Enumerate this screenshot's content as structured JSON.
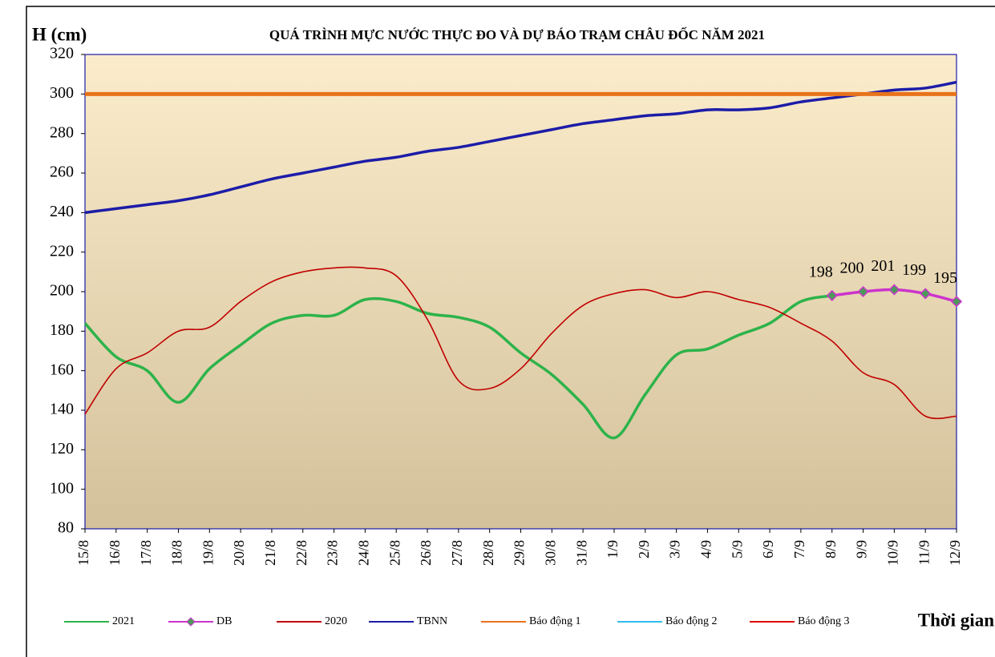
{
  "chart_data": {
    "type": "line",
    "title": "QUÁ TRÌNH MỰC NƯỚC THỰC ĐO VÀ DỰ BÁO TRẠM CHÂU ĐỐC NĂM 2021",
    "y_label": "H (cm)",
    "x_label": "Thời gian",
    "categories": [
      "15/8",
      "16/8",
      "17/8",
      "18/8",
      "19/8",
      "20/8",
      "21/8",
      "22/8",
      "23/8",
      "24/8",
      "25/8",
      "26/8",
      "27/8",
      "28/8",
      "29/8",
      "30/8",
      "31/8",
      "1/9",
      "2/9",
      "3/9",
      "4/9",
      "5/9",
      "6/9",
      "7/9",
      "8/9",
      "9/9",
      "10/9",
      "11/9",
      "12/9"
    ],
    "ylim": [
      80,
      320
    ],
    "yticks": [
      80,
      100,
      120,
      140,
      160,
      180,
      200,
      220,
      240,
      260,
      280,
      300,
      320
    ],
    "series": [
      {
        "name": "2021",
        "color": "#2db34a",
        "values": [
          184,
          167,
          160,
          144,
          161,
          173,
          184,
          188,
          188,
          196,
          195,
          189,
          187,
          182,
          169,
          158,
          143,
          126,
          148,
          168,
          171,
          178,
          184,
          195,
          198,
          null,
          null,
          null,
          null
        ]
      },
      {
        "name": "DB",
        "color": "#cc33cc",
        "marker_color": "#4c9a5a",
        "data_labels": true,
        "values": [
          null,
          null,
          null,
          null,
          null,
          null,
          null,
          null,
          null,
          null,
          null,
          null,
          null,
          null,
          null,
          null,
          null,
          null,
          null,
          null,
          null,
          null,
          null,
          null,
          198,
          200,
          201,
          199,
          195
        ]
      },
      {
        "name": "2020",
        "color": "#c00000",
        "values": [
          138,
          161,
          169,
          180,
          182,
          195,
          205,
          210,
          212,
          212,
          208,
          186,
          155,
          151,
          161,
          179,
          193,
          199,
          201,
          197,
          200,
          196,
          192,
          184,
          175,
          159,
          153,
          137,
          137
        ]
      },
      {
        "name": "TBNN",
        "color": "#1c1ca8",
        "values": [
          240,
          242,
          244,
          246,
          249,
          253,
          257,
          260,
          263,
          266,
          268,
          271,
          273,
          276,
          279,
          282,
          285,
          287,
          289,
          290,
          292,
          292,
          293,
          296,
          298,
          300,
          302,
          303,
          306
        ]
      },
      {
        "name": "Báo động 1",
        "color": "#e8731a",
        "values": [
          300,
          300,
          300,
          300,
          300,
          300,
          300,
          300,
          300,
          300,
          300,
          300,
          300,
          300,
          300,
          300,
          300,
          300,
          300,
          300,
          300,
          300,
          300,
          300,
          300,
          300,
          300,
          300,
          300
        ]
      },
      {
        "name": "Báo động 2",
        "color": "#33bbee",
        "values": [
          null,
          null,
          null,
          null,
          null,
          null,
          null,
          null,
          null,
          null,
          null,
          null,
          null,
          null,
          null,
          null,
          null,
          null,
          null,
          null,
          null,
          null,
          null,
          null,
          null,
          null,
          null,
          null,
          null
        ]
      },
      {
        "name": "Báo động 3",
        "color": "#e00000",
        "values": [
          null,
          null,
          null,
          null,
          null,
          null,
          null,
          null,
          null,
          null,
          null,
          null,
          null,
          null,
          null,
          null,
          null,
          null,
          null,
          null,
          null,
          null,
          null,
          null,
          null,
          null,
          null,
          null,
          null
        ]
      }
    ]
  }
}
